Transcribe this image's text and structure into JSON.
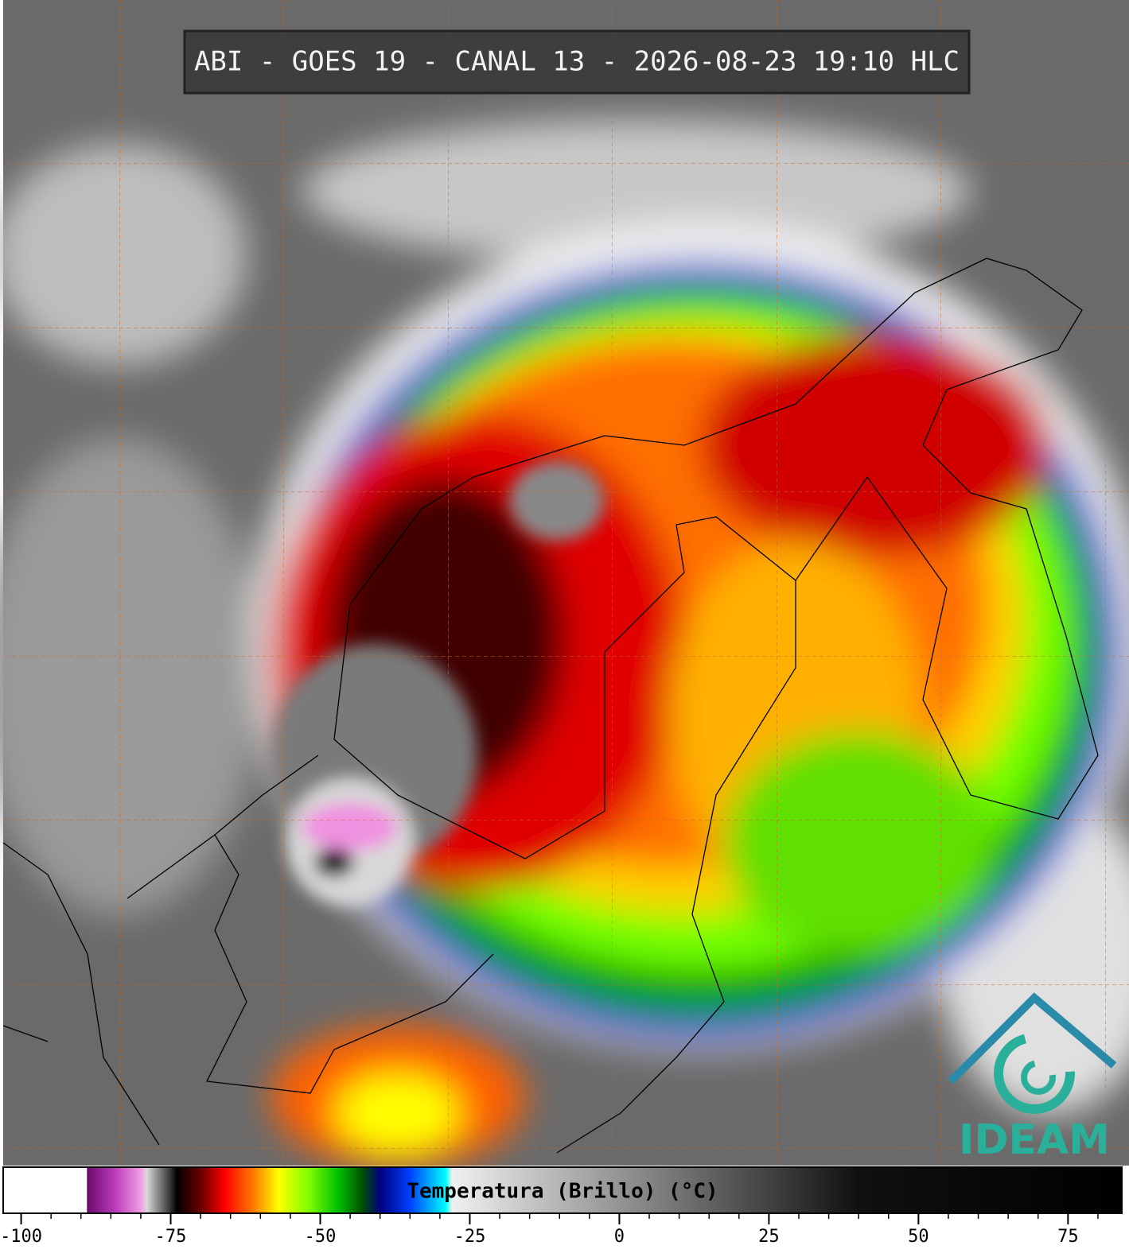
{
  "header": {
    "title": "ABI - GOES 19 - CANAL 13 - 2026-08-23 19:10 HLC"
  },
  "logo": {
    "text": "IDEAM"
  },
  "colorbar": {
    "label": "Temperatura (Brillo) (°C)",
    "lim": [
      -103,
      84
    ],
    "ticks": [
      -100,
      -75,
      -50,
      -25,
      0,
      25,
      50,
      75
    ],
    "minor_step": 5,
    "stops": [
      {
        "value": -103,
        "color": "#ffffff"
      },
      {
        "value": -89,
        "color": "#ffffff"
      },
      {
        "value": -89,
        "color": "#6a0a6a"
      },
      {
        "value": -84,
        "color": "#c040c0"
      },
      {
        "value": -80,
        "color": "#f0a0e0"
      },
      {
        "value": -79,
        "color": "#d8d8d8"
      },
      {
        "value": -75,
        "color": "#303030"
      },
      {
        "value": -74,
        "color": "#000000"
      },
      {
        "value": -70,
        "color": "#6a0000"
      },
      {
        "value": -66,
        "color": "#ff0000"
      },
      {
        "value": -61,
        "color": "#ff8000"
      },
      {
        "value": -57,
        "color": "#ffff00"
      },
      {
        "value": -52,
        "color": "#80ff00"
      },
      {
        "value": -47,
        "color": "#00c000"
      },
      {
        "value": -43,
        "color": "#005000"
      },
      {
        "value": -40,
        "color": "#000080"
      },
      {
        "value": -35,
        "color": "#0040ff"
      },
      {
        "value": -29,
        "color": "#00ffff"
      },
      {
        "value": -28,
        "color": "#f0f0f0"
      },
      {
        "value": 40,
        "color": "#101010"
      },
      {
        "value": 84,
        "color": "#000000"
      }
    ]
  }
}
